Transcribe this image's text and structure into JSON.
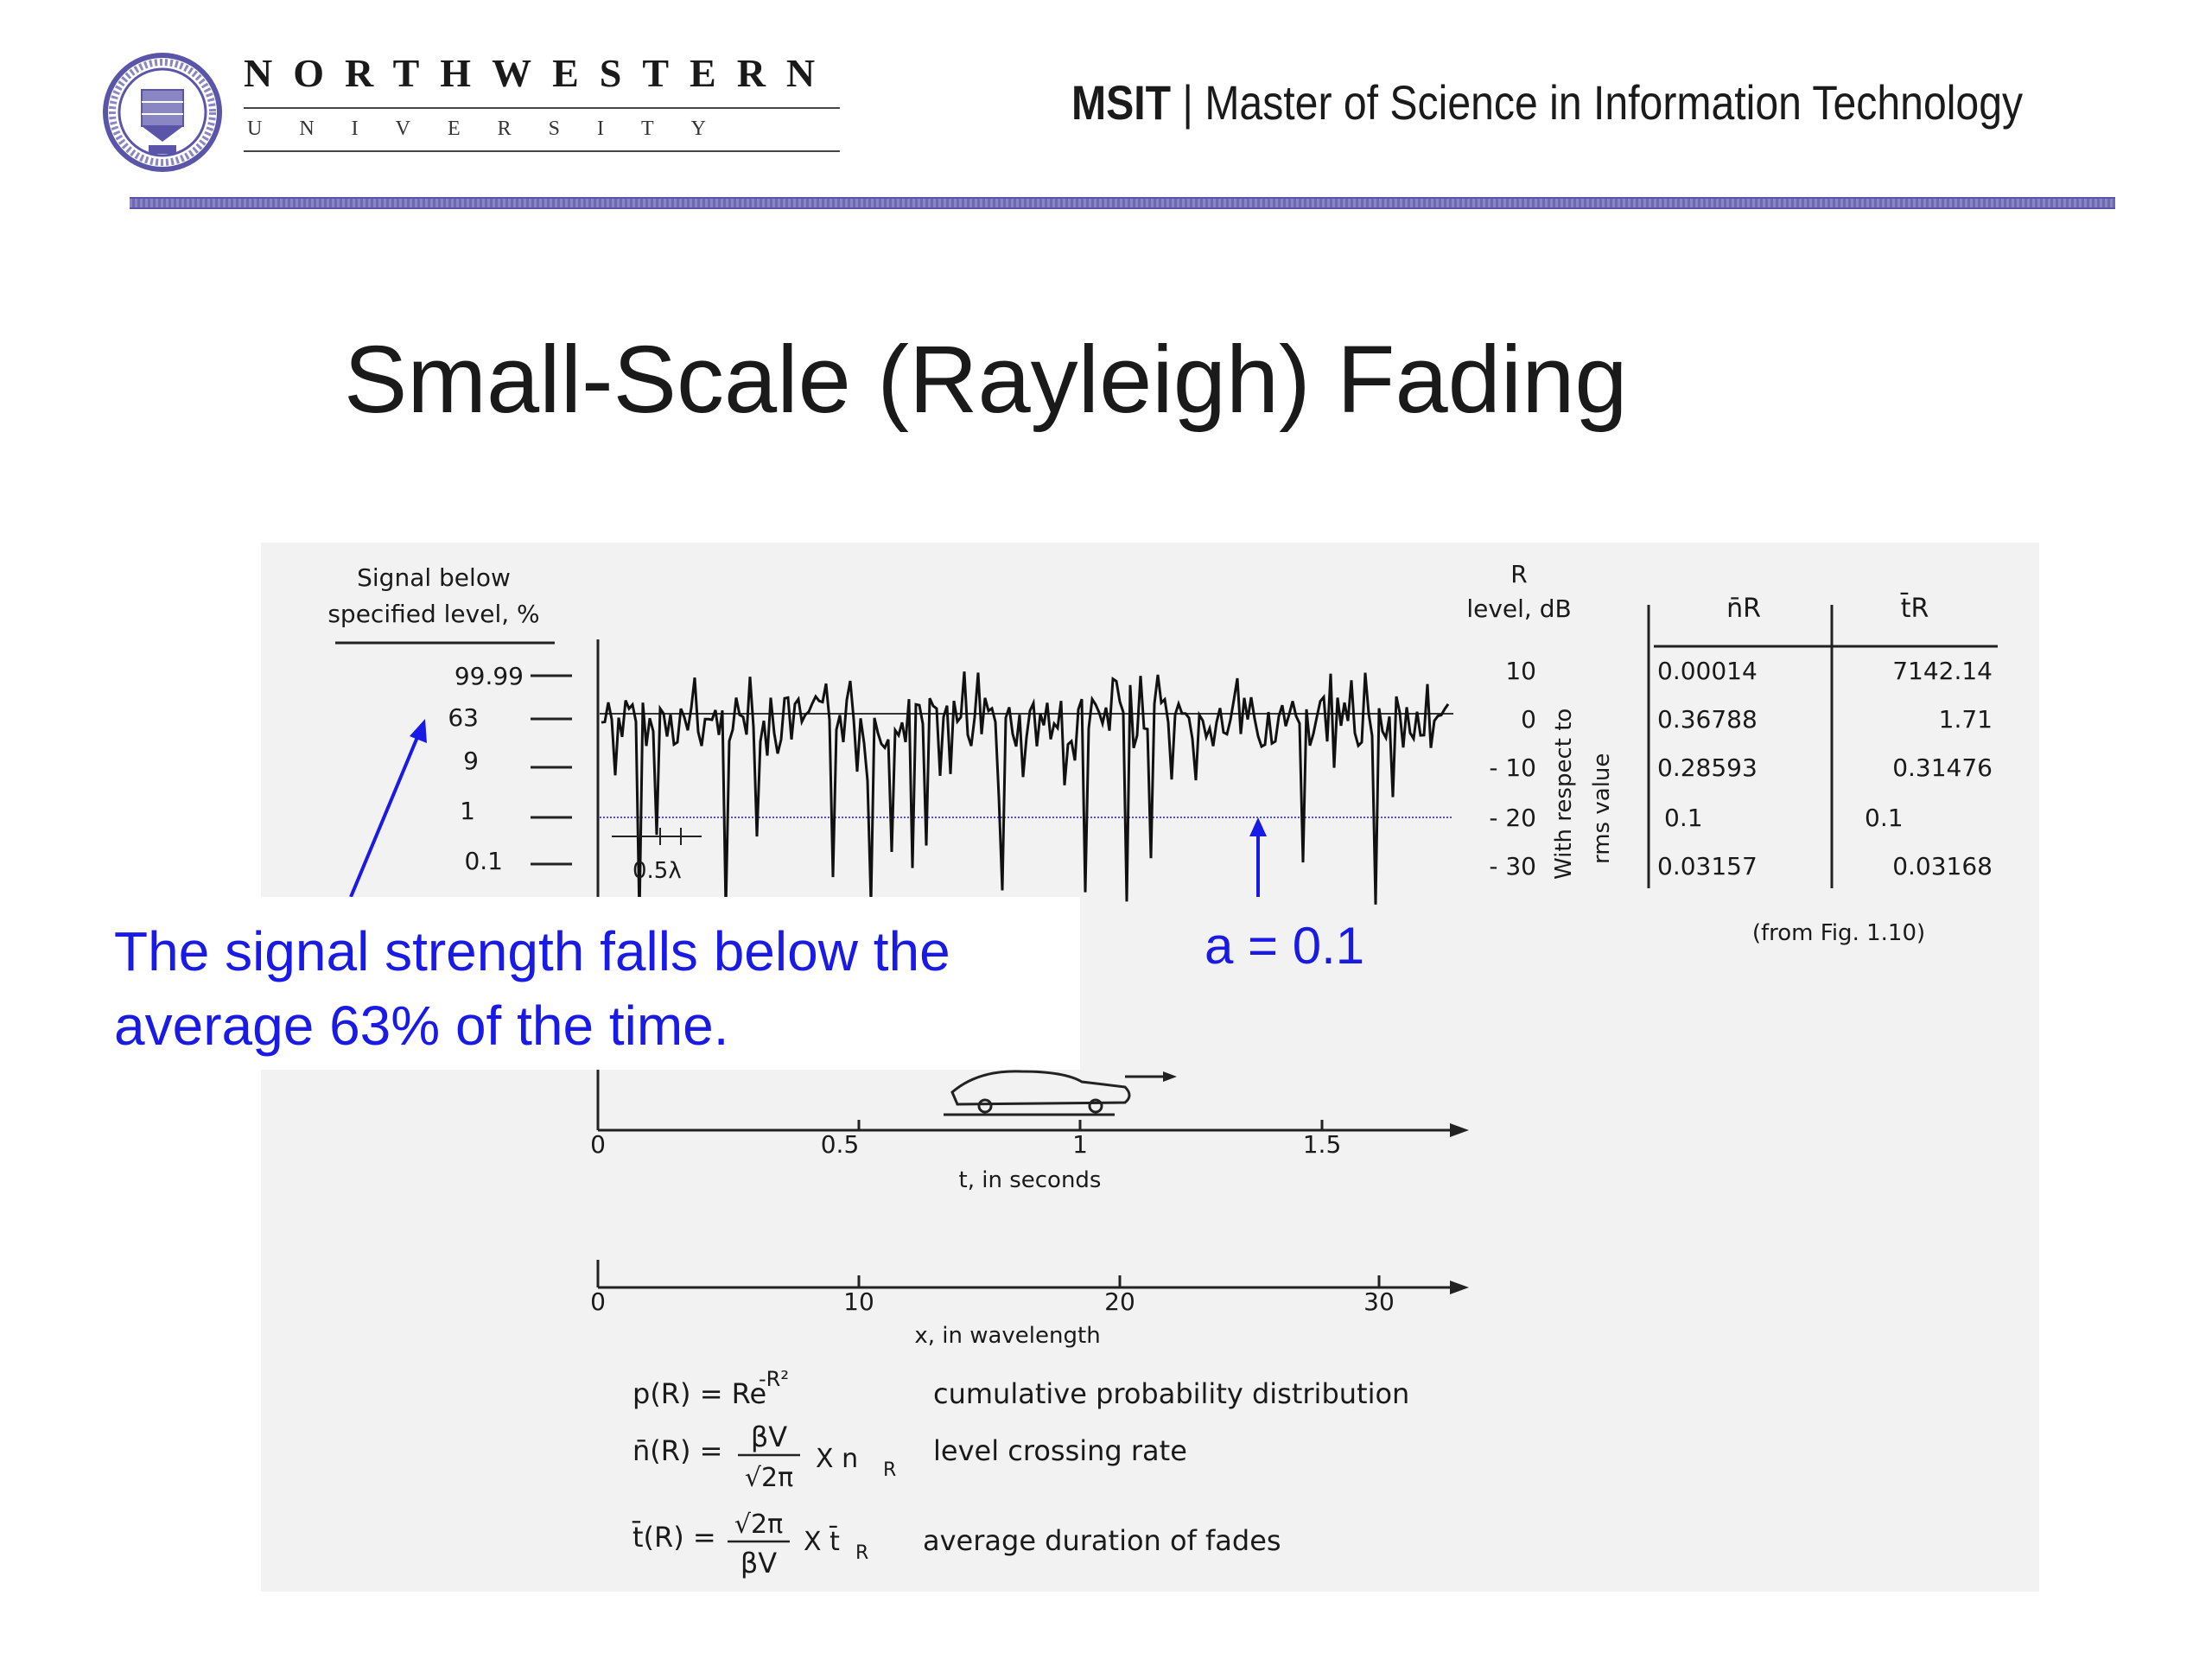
{
  "header": {
    "university_name": "NORTHWESTERN",
    "university_sub": "UNIVERSITY",
    "program_abbr": "MSIT",
    "separator": "|",
    "program_name": "Master of Science in Information Technology"
  },
  "slide": {
    "title": "Small-Scale (Rayleigh) Fading"
  },
  "figure": {
    "left_axis_title": [
      "Signal below",
      "specified level, %"
    ],
    "left_axis_ticks": [
      "99.99",
      "63",
      "9",
      "1",
      "0.1"
    ],
    "right_axis_title": [
      "R",
      "level, dB"
    ],
    "right_axis_ticks": [
      "10",
      "0",
      "- 10",
      "- 20",
      "- 30"
    ],
    "right_axis_side_label": [
      "With respect to",
      "rms value"
    ],
    "half_lambda_label": "0.5λ",
    "table": {
      "headers": [
        "n̄R",
        "t̄R"
      ],
      "rows": [
        [
          "0.00014",
          "7142.14"
        ],
        [
          "0.36788",
          "1.71"
        ],
        [
          "0.28593",
          "0.31476"
        ],
        [
          "0.1",
          "0.1"
        ],
        [
          "0.03157",
          "0.03168"
        ]
      ],
      "source": "(from Fig. 1.10)"
    },
    "time_axis": {
      "ticks": [
        "0",
        "0.5",
        "1",
        "1.5"
      ],
      "label": "t, in seconds"
    },
    "wavelength_axis": {
      "ticks": [
        "0",
        "10",
        "20",
        "30"
      ],
      "label": "x, in wavelength"
    },
    "formulas": [
      {
        "lhs": "p(R) = Re",
        "exp": "-R²",
        "desc": "cumulative probability distribution"
      },
      {
        "lhs": "n̄(R) =",
        "num": "βV",
        "den": "√2π",
        "mult": "X n",
        "sub": "R",
        "desc": "level crossing rate"
      },
      {
        "lhs": "t̄(R) =",
        "num": "√2π",
        "den": "βV",
        "mult": "X t̄",
        "sub": "R",
        "desc": "average duration of fades"
      }
    ]
  },
  "annotations": {
    "callout": "The signal strength falls below the average 63% of the time.",
    "threshold_label": "a = 0.1"
  },
  "colors": {
    "accent_blue": "#1a1ae6",
    "header_rule": "#6c67b6",
    "seal": "#5a55a8"
  }
}
